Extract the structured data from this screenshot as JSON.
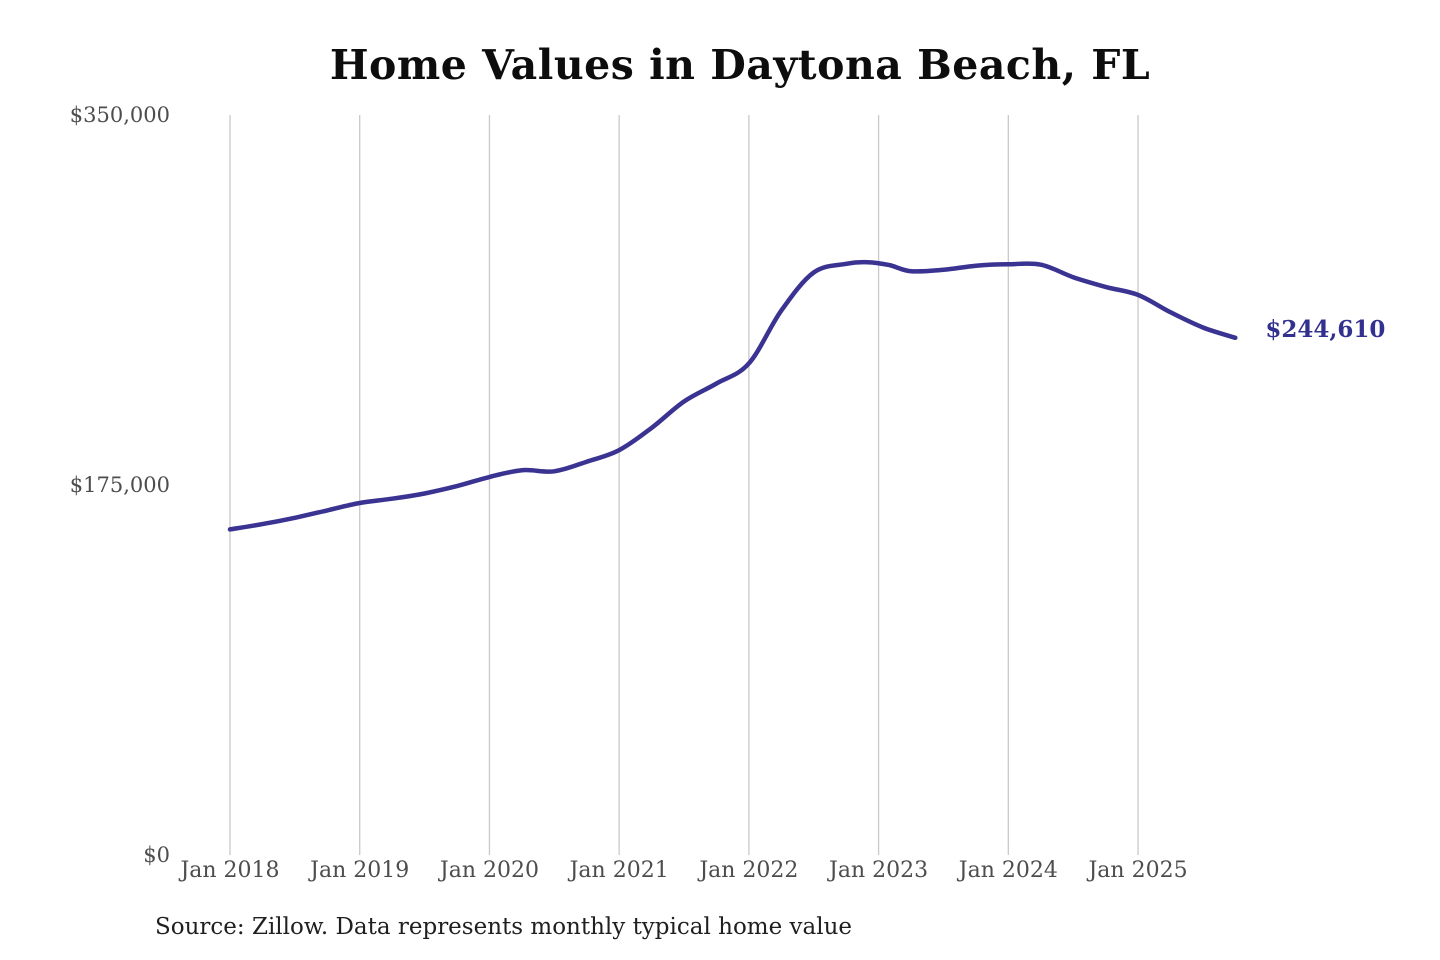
{
  "source_note": "Source: Zillow. Data represents monthly typical home value",
  "colors": {
    "line": "#3a3391",
    "end_label": "#33318f",
    "gridline": "#c9c9c9",
    "tick_text": "#4d4d4d",
    "title_text": "#0d0d0d",
    "source_text": "#1f1f1f",
    "background": "#ffffff"
  },
  "chart_data": {
    "type": "line",
    "title": "Home Values in Daytona Beach, FL",
    "xlabel": "",
    "ylabel": "",
    "ylim": [
      0,
      350000
    ],
    "grid": "vertical-only",
    "legend": "none",
    "y_ticks": [
      {
        "label": "$0",
        "value": 0
      },
      {
        "label": "$175,000",
        "value": 175000
      },
      {
        "label": "$350,000",
        "value": 350000
      }
    ],
    "x_ticks": [
      {
        "label": "Jan 2018",
        "date": "2018-01"
      },
      {
        "label": "Jan 2019",
        "date": "2019-01"
      },
      {
        "label": "Jan 2020",
        "date": "2020-01"
      },
      {
        "label": "Jan 2021",
        "date": "2021-01"
      },
      {
        "label": "Jan 2022",
        "date": "2022-01"
      },
      {
        "label": "Jan 2023",
        "date": "2023-01"
      },
      {
        "label": "Jan 2024",
        "date": "2024-01"
      },
      {
        "label": "Jan 2025",
        "date": "2025-01"
      }
    ],
    "series": [
      {
        "name": "Typical home value",
        "points": [
          {
            "date": "2018-01",
            "value": 154000
          },
          {
            "date": "2018-04",
            "value": 156500
          },
          {
            "date": "2018-07",
            "value": 159500
          },
          {
            "date": "2018-10",
            "value": 163000
          },
          {
            "date": "2019-01",
            "value": 166500
          },
          {
            "date": "2019-04",
            "value": 168500
          },
          {
            "date": "2019-07",
            "value": 171000
          },
          {
            "date": "2019-10",
            "value": 174500
          },
          {
            "date": "2020-01",
            "value": 178800
          },
          {
            "date": "2020-04",
            "value": 182000
          },
          {
            "date": "2020-07",
            "value": 181500
          },
          {
            "date": "2020-10",
            "value": 186000
          },
          {
            "date": "2021-01",
            "value": 191500
          },
          {
            "date": "2021-04",
            "value": 202000
          },
          {
            "date": "2021-07",
            "value": 214500
          },
          {
            "date": "2021-10",
            "value": 223000
          },
          {
            "date": "2022-01",
            "value": 232500
          },
          {
            "date": "2022-04",
            "value": 257500
          },
          {
            "date": "2022-07",
            "value": 275500
          },
          {
            "date": "2022-10",
            "value": 279600
          },
          {
            "date": "2022-12",
            "value": 280400
          },
          {
            "date": "2023-02",
            "value": 279000
          },
          {
            "date": "2023-04",
            "value": 276100
          },
          {
            "date": "2023-07",
            "value": 276800
          },
          {
            "date": "2023-10",
            "value": 278700
          },
          {
            "date": "2024-01",
            "value": 279400
          },
          {
            "date": "2024-04",
            "value": 279200
          },
          {
            "date": "2024-07",
            "value": 273300
          },
          {
            "date": "2024-10",
            "value": 268700
          },
          {
            "date": "2025-01",
            "value": 264900
          },
          {
            "date": "2025-04",
            "value": 256700
          },
          {
            "date": "2025-07",
            "value": 249500
          },
          {
            "date": "2025-10",
            "value": 244610
          }
        ]
      }
    ],
    "end_annotation": {
      "text": "$244,610",
      "value": 244610,
      "date": "2025-10"
    }
  }
}
